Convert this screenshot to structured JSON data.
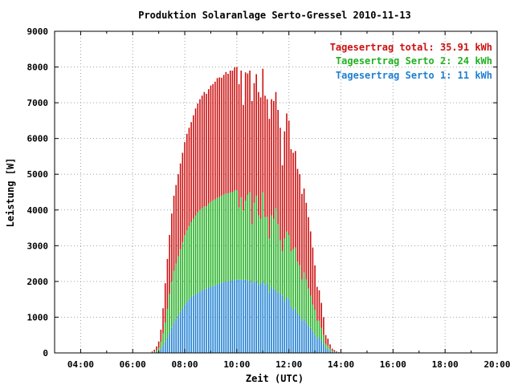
{
  "chart_data": {
    "type": "bar",
    "title": "Produktion Solaranlage Serto-Gressel 2010-11-13",
    "xlabel": "Zeit (UTC)",
    "ylabel": "Leistung [W]",
    "xlim": [
      3.0,
      20.0
    ],
    "ylim": [
      0,
      9000
    ],
    "x_ticks": [
      4,
      6,
      8,
      10,
      12,
      14,
      16,
      18,
      20
    ],
    "x_tick_labels": [
      "04:00",
      "06:00",
      "08:00",
      "10:00",
      "12:00",
      "14:00",
      "16:00",
      "18:00",
      "20:00"
    ],
    "y_ticks": [
      0,
      1000,
      2000,
      3000,
      4000,
      5000,
      6000,
      7000,
      8000,
      9000
    ],
    "y_tick_labels": [
      "0",
      "1000",
      "2000",
      "3000",
      "4000",
      "5000",
      "6000",
      "7000",
      "8000",
      "9000"
    ],
    "grid": true,
    "legend_position": "top-right",
    "stacked": true,
    "time_step_minutes": 5,
    "x_start": "06:40",
    "series": [
      {
        "name": "Serto 1",
        "color": "#1f7fd1",
        "values": [
          0,
          10,
          20,
          40,
          60,
          120,
          200,
          300,
          430,
          550,
          700,
          850,
          950,
          1050,
          1150,
          1250,
          1350,
          1430,
          1500,
          1560,
          1600,
          1640,
          1680,
          1720,
          1750,
          1780,
          1800,
          1830,
          1850,
          1870,
          1890,
          1920,
          1940,
          1960,
          1980,
          2000,
          2010,
          2020,
          2030,
          2040,
          2050,
          2050,
          2050,
          2040,
          2050,
          2020,
          2030,
          1950,
          2000,
          2000,
          1900,
          1950,
          2000,
          1900,
          1950,
          1700,
          1850,
          1800,
          1750,
          1700,
          1650,
          1600,
          1450,
          1550,
          1500,
          1300,
          1200,
          1250,
          1100,
          1050,
          900,
          950,
          850,
          750,
          700,
          600,
          500,
          400,
          450,
          350,
          250,
          150,
          100,
          60,
          30,
          20,
          10,
          5,
          0
        ]
      },
      {
        "name": "Serto 2",
        "color": "#22b022",
        "values": [
          0,
          10,
          20,
          40,
          80,
          180,
          350,
          550,
          800,
          1100,
          1300,
          1450,
          1550,
          1650,
          1750,
          1850,
          1950,
          2000,
          2050,
          2100,
          2150,
          2200,
          2250,
          2280,
          2300,
          2320,
          2300,
          2350,
          2380,
          2400,
          2400,
          2420,
          2420,
          2440,
          2450,
          2460,
          2450,
          2480,
          2470,
          2500,
          2500,
          2020,
          2300,
          1950,
          2200,
          2400,
          2470,
          1650,
          2200,
          2400,
          1950,
          1800,
          2500,
          1900,
          1850,
          1500,
          2000,
          1950,
          2300,
          1900,
          1500,
          1250,
          1750,
          1850,
          1800,
          1550,
          1700,
          1700,
          1450,
          1400,
          1150,
          1300,
          1200,
          1050,
          900,
          750,
          700,
          500,
          450,
          350,
          250,
          100,
          100,
          60,
          30,
          20,
          10,
          5,
          0
        ]
      },
      {
        "name": "total",
        "color": "#cc1111",
        "values": [
          0,
          20,
          50,
          100,
          180,
          350,
          700,
          1100,
          1400,
          1650,
          1900,
          2100,
          2200,
          2300,
          2400,
          2500,
          2600,
          2700,
          2750,
          2800,
          2900,
          3000,
          3050,
          3100,
          3150,
          3200,
          3150,
          3200,
          3250,
          3250,
          3300,
          3350,
          3350,
          3300,
          3350,
          3400,
          3350,
          3400,
          3400,
          3450,
          3450,
          3450,
          3550,
          2950,
          3600,
          3400,
          3400,
          3450,
          3350,
          3400,
          3450,
          3400,
          3450,
          3400,
          3300,
          3350,
          3250,
          3300,
          3250,
          3200,
          3150,
          2400,
          3000,
          3300,
          3200,
          2850,
          2700,
          2700,
          2600,
          2550,
          2400,
          2350,
          2150,
          2000,
          1800,
          1600,
          1250,
          950,
          850,
          700,
          500,
          250,
          200,
          120,
          60,
          40,
          20,
          10,
          0
        ]
      }
    ],
    "legend": [
      {
        "label": "Tagesertrag total: 35.91 kWh",
        "color": "#cc1111"
      },
      {
        "label": "Tagesertrag Serto 2: 24 kWh",
        "color": "#22b022"
      },
      {
        "label": "Tagesertrag Serto 1: 11 kWh",
        "color": "#1f7fd1"
      }
    ]
  }
}
